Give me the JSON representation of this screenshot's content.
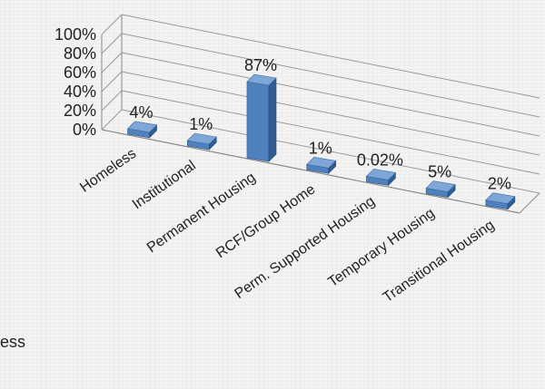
{
  "chart_data": {
    "type": "bar",
    "style": "3d-column",
    "categories": [
      "Homeless",
      "Institutional",
      "Permanent Housing",
      "RCF/Group Home",
      "Perm. Supported Housing",
      "Temporary Housing",
      "Transitional Housing"
    ],
    "values": [
      4,
      1,
      87,
      1,
      0.02,
      5,
      2
    ],
    "data_labels": [
      "4%",
      "1%",
      "87%",
      "1%",
      "0.02%",
      "5%",
      "2%"
    ],
    "y_ticks": [
      "0%",
      "20%",
      "40%",
      "60%",
      "80%",
      "100%"
    ],
    "ylim": [
      0,
      100
    ],
    "grid": true,
    "legend": "none",
    "bar_color": "#4f81bd",
    "bar_side_color": "#2f5d94",
    "bar_top_color": "#7ea6d8"
  },
  "cut_off_text": "ess"
}
